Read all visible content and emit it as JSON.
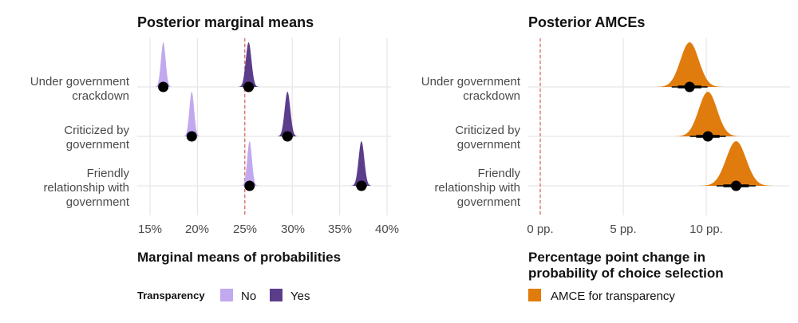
{
  "chart_data": [
    {
      "type": "ridgeline",
      "title": "Posterior marginal means",
      "xlabel": "Marginal means of probabilities",
      "ylabel": "",
      "xlim": [
        0.14,
        0.4
      ],
      "x_ticks": [
        0.15,
        0.2,
        0.25,
        0.3,
        0.35,
        0.4
      ],
      "x_tick_labels": [
        "15%",
        "20%",
        "25%",
        "30%",
        "35%",
        "40%"
      ],
      "reference_line": 0.25,
      "categories": [
        "Under government crackdown",
        "Criticized by government",
        "Friendly relationship with government"
      ],
      "category_labels": [
        [
          "Under government",
          "crackdown"
        ],
        [
          "Criticized by",
          "government"
        ],
        [
          "Friendly",
          "relationship with",
          "government"
        ]
      ],
      "legend": {
        "title": "Transparency",
        "placement": "bottom-left"
      },
      "series": [
        {
          "name": "No",
          "color": "#c2a9ef",
          "values": [
            0.164,
            0.194,
            0.255
          ],
          "sd": [
            0.0025,
            0.0025,
            0.0025
          ]
        },
        {
          "name": "Yes",
          "color": "#5b3d8c",
          "values": [
            0.254,
            0.295,
            0.373
          ],
          "sd": [
            0.003,
            0.003,
            0.003
          ]
        }
      ],
      "grid": true
    },
    {
      "type": "ridgeline",
      "title": "Posterior AMCEs",
      "xlabel": "Percentage point change in probability of choice selection",
      "xlabel_lines": [
        "Percentage point change in",
        "probability of choice selection"
      ],
      "ylabel": "",
      "xlim": [
        -0.8,
        14.5
      ],
      "x_ticks": [
        0,
        5,
        10
      ],
      "x_tick_labels": [
        "0 pp.",
        "5 pp.",
        "10 pp."
      ],
      "reference_line": 0,
      "categories": [
        "Under government crackdown",
        "Criticized by government",
        "Friendly relationship with government"
      ],
      "category_labels": [
        [
          "Under government",
          "crackdown"
        ],
        [
          "Criticized by",
          "government"
        ],
        [
          "Friendly",
          "relationship with",
          "government"
        ]
      ],
      "legend": {
        "placement": "bottom-left"
      },
      "series": [
        {
          "name": "AMCE for transparency",
          "color": "#e07c0e",
          "values": [
            9.0,
            10.1,
            11.8
          ],
          "sd": [
            0.55,
            0.55,
            0.6
          ]
        }
      ],
      "grid": true
    }
  ]
}
